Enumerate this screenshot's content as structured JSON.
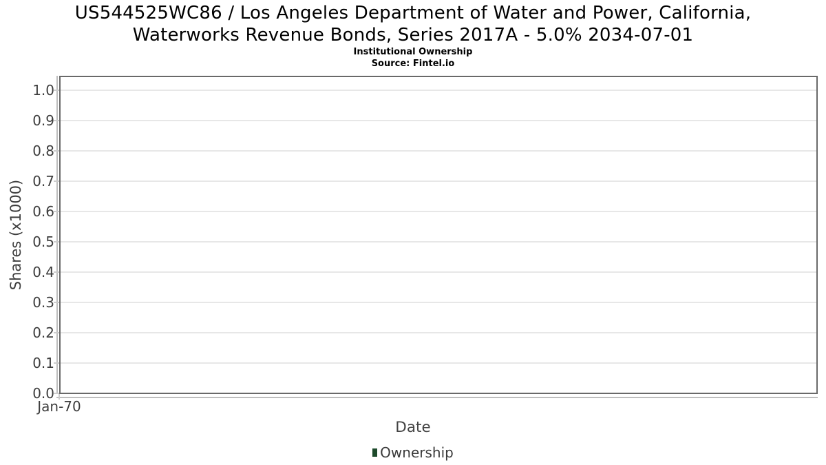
{
  "chart_data": {
    "type": "line",
    "title": "US544525WC86 / Los Angeles Department of Water and Power, California, Waterworks Revenue Bonds, Series 2017A - 5.0% 2034-07-01",
    "title_line1": "US544525WC86 / Los Angeles Department of Water and Power, California,",
    "title_line2": "Waterworks Revenue Bonds, Series 2017A - 5.0% 2034-07-01",
    "subtitle": "Institutional Ownership",
    "source": "Source: Fintel.io",
    "xlabel": "Date",
    "ylabel": "Shares (x1000)",
    "x_tick_labels": [
      "Jan-70"
    ],
    "y_tick_labels": [
      "0.0",
      "0.1",
      "0.2",
      "0.3",
      "0.4",
      "0.5",
      "0.6",
      "0.7",
      "0.8",
      "0.9",
      "1.0"
    ],
    "y_tick_values": [
      0.0,
      0.1,
      0.2,
      0.3,
      0.4,
      0.5,
      0.6,
      0.7,
      0.8,
      0.9,
      1.0
    ],
    "ylim": [
      0.0,
      1.05
    ],
    "grid": "horizontal",
    "legend_position": "bottom-center",
    "legend": {
      "entries": [
        {
          "label": "Ownership",
          "color": "#1d4a2b"
        }
      ]
    },
    "series": [
      {
        "name": "Ownership",
        "x": [],
        "values": []
      }
    ]
  },
  "colors": {
    "plot_border": "#696969",
    "gridline": "#e7e7e7",
    "axis_line": "#bdbdbd",
    "tick_mark": "#cccccc",
    "tick_text": "#3d3d3d",
    "title_text": "#000000",
    "legend_marker": "#1d4a2b"
  }
}
